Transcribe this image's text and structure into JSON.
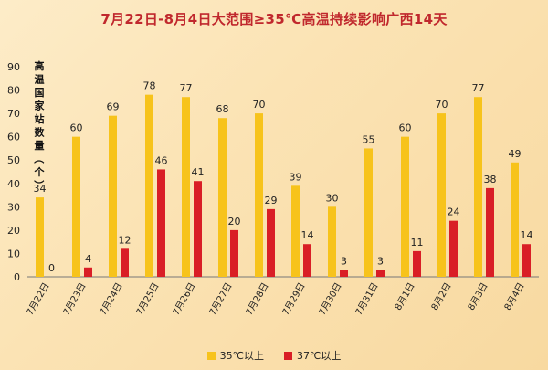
{
  "chart_data": {
    "type": "bar",
    "title": "7月22日-8月4日大范围≥35℃高温持续影响广西14天",
    "ylabel": "高温国家站数量（个）",
    "ylim": [
      0,
      90
    ],
    "yticks": [
      0,
      10,
      20,
      30,
      40,
      50,
      60,
      70,
      80,
      90
    ],
    "grid": false,
    "legend_position": "bottom-center",
    "categories": [
      "7月22日",
      "7月23日",
      "7月24日",
      "7月25日",
      "7月26日",
      "7月27日",
      "7月28日",
      "7月29日",
      "7月30日",
      "7月31日",
      "8月1日",
      "8月2日",
      "8月3日",
      "8月4日"
    ],
    "series": [
      {
        "name": "35℃以上",
        "color": "#f7c31b",
        "values": [
          34,
          60,
          69,
          78,
          77,
          68,
          70,
          39,
          30,
          55,
          60,
          70,
          77,
          49
        ]
      },
      {
        "name": "37℃以上",
        "color": "#d91e26",
        "values": [
          0,
          4,
          12,
          46,
          41,
          20,
          29,
          14,
          3,
          3,
          11,
          24,
          38,
          14
        ]
      }
    ]
  }
}
